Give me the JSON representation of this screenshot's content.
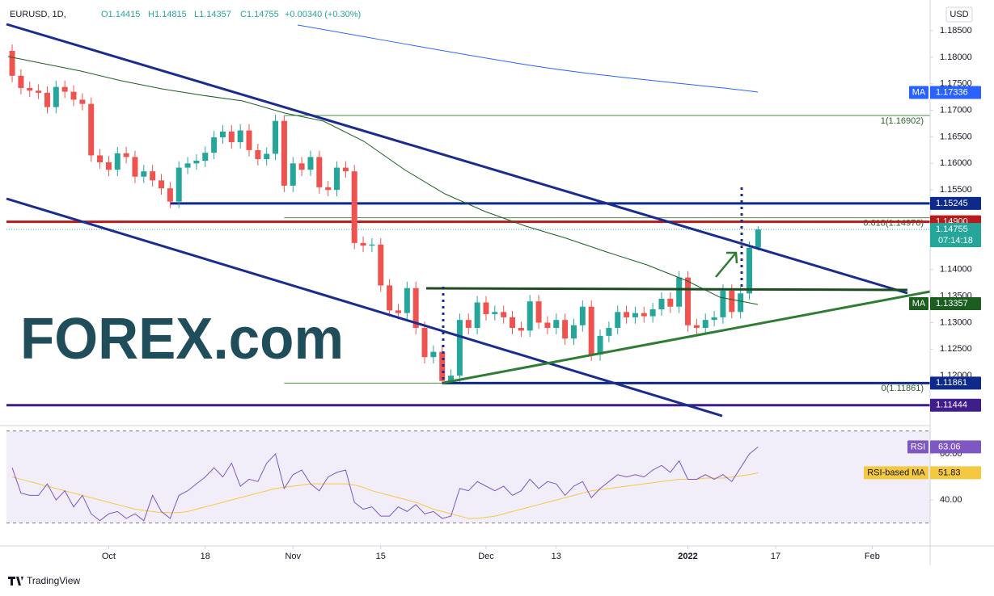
{
  "chart_data": {
    "type": "candlestick",
    "symbol": "EURUSD, 1D,",
    "legend_items": [
      "O1.14415",
      "H1.14815",
      "L1.14357",
      "C1.14755",
      "+0.00340 (+0.30%)"
    ],
    "currency": "USD",
    "logo": "FOREX.com",
    "footer": "TradingView",
    "up_color": "#26a69a",
    "down_color": "#ef5350",
    "x": [
      0,
      1,
      2,
      3,
      4,
      5,
      6,
      7,
      8,
      9,
      10,
      11,
      12,
      13,
      14,
      15,
      16,
      17,
      18,
      19,
      20,
      21,
      22,
      23,
      24,
      25,
      26,
      27,
      28,
      29,
      30,
      31,
      32,
      33,
      34,
      35,
      36,
      37,
      38,
      39,
      40,
      41,
      42,
      43,
      44,
      45,
      46,
      47,
      48,
      49,
      50,
      51,
      52,
      53,
      54,
      55,
      56,
      57,
      58,
      59,
      60,
      61,
      62,
      63,
      64,
      65,
      66,
      67,
      68,
      69,
      70,
      71,
      72,
      73,
      74,
      75,
      76,
      77,
      78,
      79,
      80,
      81,
      82,
      83,
      84,
      85
    ],
    "open": [
      1.1812,
      1.1765,
      1.1742,
      1.1737,
      1.1733,
      1.1706,
      1.1744,
      1.1735,
      1.172,
      1.1712,
      1.1615,
      1.1602,
      1.1588,
      1.1619,
      1.1612,
      1.1575,
      1.1585,
      1.1568,
      1.1553,
      1.1528,
      1.1592,
      1.16,
      1.1605,
      1.162,
      1.1649,
      1.166,
      1.164,
      1.1662,
      1.1625,
      1.1608,
      1.1618,
      1.168,
      1.1558,
      1.16,
      1.1588,
      1.1612,
      1.1555,
      1.155,
      1.1592,
      1.1585,
      1.145,
      1.1445,
      1.1447,
      1.137,
      1.1323,
      1.1318,
      1.1365,
      1.129,
      1.1235,
      1.1245,
      1.119,
      1.12,
      1.1305,
      1.129,
      1.1338,
      1.1316,
      1.132,
      1.131,
      1.129,
      1.1285,
      1.134,
      1.13,
      1.129,
      1.1305,
      1.127,
      1.1295,
      1.133,
      1.124,
      1.1275,
      1.129,
      1.132,
      1.131,
      1.1318,
      1.1312,
      1.1325,
      1.1345,
      1.133,
      1.1385,
      1.1295,
      1.129,
      1.1305,
      1.131,
      1.136,
      1.132,
      1.1355,
      1.14415
    ],
    "high": [
      1.1824,
      1.1777,
      1.1754,
      1.1749,
      1.1745,
      1.1756,
      1.1756,
      1.1747,
      1.1732,
      1.1724,
      1.1627,
      1.1614,
      1.1631,
      1.1631,
      1.1624,
      1.1597,
      1.1597,
      1.158,
      1.1565,
      1.1604,
      1.1612,
      1.1617,
      1.1632,
      1.1661,
      1.1672,
      1.1672,
      1.1674,
      1.1674,
      1.1637,
      1.163,
      1.1692,
      1.16902,
      1.1612,
      1.1612,
      1.1624,
      1.1624,
      1.1567,
      1.1604,
      1.1604,
      1.1597,
      1.1462,
      1.1459,
      1.1459,
      1.1382,
      1.1335,
      1.1377,
      1.1377,
      1.1302,
      1.1257,
      1.1257,
      1.1212,
      1.1317,
      1.1317,
      1.135,
      1.135,
      1.1332,
      1.1332,
      1.1322,
      1.1302,
      1.1352,
      1.1352,
      1.1312,
      1.1317,
      1.1317,
      1.1307,
      1.1342,
      1.1342,
      1.1287,
      1.1302,
      1.1332,
      1.1332,
      1.133,
      1.133,
      1.1337,
      1.1357,
      1.1357,
      1.1397,
      1.1397,
      1.1307,
      1.1317,
      1.1322,
      1.1372,
      1.1372,
      1.1367,
      1.1453,
      1.14815
    ],
    "low": [
      1.1753,
      1.173,
      1.1725,
      1.1721,
      1.1694,
      1.1694,
      1.1723,
      1.1708,
      1.17,
      1.1603,
      1.159,
      1.1576,
      1.1576,
      1.16,
      1.1563,
      1.1563,
      1.1556,
      1.1541,
      1.1516,
      1.1516,
      1.158,
      1.1588,
      1.1593,
      1.1608,
      1.1637,
      1.1628,
      1.1628,
      1.1613,
      1.1596,
      1.1596,
      1.1606,
      1.1546,
      1.1546,
      1.1576,
      1.1576,
      1.1543,
      1.1538,
      1.1538,
      1.1573,
      1.1438,
      1.1433,
      1.1433,
      1.1358,
      1.1311,
      1.1306,
      1.1306,
      1.1278,
      1.1223,
      1.1223,
      1.11861,
      1.1188,
      1.1188,
      1.1278,
      1.1278,
      1.1304,
      1.1304,
      1.1298,
      1.1278,
      1.1273,
      1.1273,
      1.1288,
      1.1278,
      1.1278,
      1.1258,
      1.1258,
      1.1283,
      1.1228,
      1.1228,
      1.1263,
      1.1278,
      1.1298,
      1.1298,
      1.13,
      1.13,
      1.1313,
      1.1318,
      1.1318,
      1.1283,
      1.1278,
      1.1278,
      1.1293,
      1.1298,
      1.1308,
      1.1308,
      1.1343,
      1.14357
    ],
    "close": [
      1.1765,
      1.1742,
      1.1737,
      1.1733,
      1.1706,
      1.1744,
      1.1735,
      1.172,
      1.1712,
      1.1615,
      1.1602,
      1.1588,
      1.1619,
      1.1612,
      1.1575,
      1.1585,
      1.1568,
      1.1553,
      1.1528,
      1.1592,
      1.16,
      1.1605,
      1.162,
      1.1649,
      1.166,
      1.164,
      1.1662,
      1.1625,
      1.1608,
      1.1618,
      1.168,
      1.1558,
      1.16,
      1.1588,
      1.1612,
      1.1555,
      1.155,
      1.1592,
      1.1585,
      1.145,
      1.1445,
      1.1447,
      1.137,
      1.1323,
      1.1318,
      1.1365,
      1.129,
      1.1235,
      1.1245,
      1.119,
      1.12,
      1.1305,
      1.129,
      1.1338,
      1.1316,
      1.132,
      1.131,
      1.129,
      1.1285,
      1.134,
      1.13,
      1.129,
      1.1305,
      1.127,
      1.1295,
      1.133,
      1.124,
      1.1275,
      1.129,
      1.132,
      1.131,
      1.1318,
      1.1312,
      1.1325,
      1.1345,
      1.133,
      1.1385,
      1.1295,
      1.129,
      1.1305,
      1.131,
      1.136,
      1.132,
      1.1355,
      1.1441,
      1.14755
    ],
    "xlim": [
      -0.65,
      104.6
    ],
    "xticks": [
      {
        "value": 11,
        "label": "Oct"
      },
      {
        "value": 22,
        "label": "18"
      },
      {
        "value": 32,
        "label": "Nov"
      },
      {
        "value": 42,
        "label": "15"
      },
      {
        "value": 54,
        "label": "Dec"
      },
      {
        "value": 62,
        "label": "13"
      },
      {
        "value": 77,
        "label": "2022"
      },
      {
        "value": 87,
        "label": "17"
      },
      {
        "value": 98,
        "label": "Feb"
      }
    ],
    "ylim": [
      1.11166,
      1.19002
    ],
    "yticks": [
      {
        "value": 1.185,
        "label": "1.18500"
      },
      {
        "value": 1.18,
        "label": "1.18000"
      },
      {
        "value": 1.175,
        "label": "1.17500"
      },
      {
        "value": 1.17,
        "label": "1.17000"
      },
      {
        "value": 1.165,
        "label": "1.16500"
      },
      {
        "value": 1.16,
        "label": "1.16000"
      },
      {
        "value": 1.155,
        "label": "1.15500"
      },
      {
        "value": 1.14,
        "label": "1.14000"
      },
      {
        "value": 1.135,
        "label": "1.13500"
      },
      {
        "value": 1.13,
        "label": "1.13000"
      },
      {
        "value": 1.125,
        "label": "1.12500"
      },
      {
        "value": 1.12,
        "label": "1.12000"
      }
    ],
    "levels": [
      {
        "value": 1.17336,
        "label": "1.17336",
        "tag": "MA",
        "color": "#2962ff"
      },
      {
        "value": 1.15245,
        "label": "1.15245",
        "color": "#0d2a8a",
        "line": "solid",
        "from": 18
      },
      {
        "value": 1.149,
        "label": "1.14900",
        "color": "#b71c1c",
        "line": "solid"
      },
      {
        "value": 1.14755,
        "label": "1.14755",
        "countdown": "07:14:18",
        "color": "#26a69a",
        "line": "dotted"
      },
      {
        "value": 1.13357,
        "label": "1.13357",
        "tag": "MA",
        "color": "#1b5e20"
      },
      {
        "value": 1.11861,
        "label": "1.11861",
        "color": "#0d2a8a",
        "line": "solid",
        "from": 49
      },
      {
        "value": 1.11444,
        "label": "1.11444",
        "color": "#3f1d8a",
        "line": "solid"
      }
    ],
    "fib": [
      {
        "value": 1.16902,
        "label": "1(1.16902)"
      },
      {
        "value": 1.14976,
        "label": "0.618(1.14976)"
      },
      {
        "value": 1.11861,
        "label": "0(1.11861)"
      }
    ],
    "fib_from": 31,
    "fib_color": "#4c8c4a",
    "rsi": {
      "name": "RSI",
      "color": "#7e57c2",
      "values": [
        54,
        43,
        42,
        42,
        47,
        40,
        44,
        37,
        42,
        34,
        31,
        34,
        35,
        32,
        34,
        31,
        42,
        35,
        32,
        42,
        44,
        47,
        50,
        54,
        50,
        56,
        46,
        49,
        48,
        56,
        60,
        45,
        51,
        53,
        47,
        44,
        50,
        52,
        53,
        39,
        36,
        37,
        33,
        33,
        37,
        35,
        38,
        34,
        35,
        32,
        33,
        45,
        44,
        48,
        46,
        44,
        46,
        42,
        44,
        49,
        45,
        48,
        47,
        42,
        46,
        48,
        41,
        45,
        48,
        51,
        50,
        51,
        50,
        53,
        55,
        52,
        57,
        49,
        49,
        51,
        49,
        51,
        48,
        54,
        60,
        63.06
      ],
      "ma_name": "RSI-based MA",
      "ma_color": "#f5c842",
      "ma_values": [
        50,
        49,
        48,
        47,
        46,
        45,
        44,
        43,
        42,
        41,
        40,
        39,
        38,
        37,
        36,
        35.5,
        35,
        34.5,
        34.5,
        34.5,
        35,
        36,
        37,
        38,
        39,
        40,
        41,
        42,
        43,
        44,
        45,
        45.5,
        46,
        46.5,
        47,
        47,
        47,
        47,
        47,
        46.5,
        45.5,
        44,
        43,
        42,
        41,
        40,
        39,
        37.5,
        36,
        35,
        34,
        33,
        32,
        32,
        32.5,
        33,
        34,
        35,
        36,
        37,
        38,
        39,
        40,
        41,
        42,
        43,
        44,
        44.5,
        45,
        45.5,
        46,
        46.5,
        47,
        47.5,
        48,
        48.5,
        49,
        49,
        49,
        49.5,
        49.5,
        49.5,
        50,
        50.5,
        51,
        51.83
      ],
      "ylim": [
        20.4,
        70.2
      ],
      "yticks": [
        {
          "value": 60,
          "label": "60.00"
        },
        {
          "value": 40,
          "label": "40.00"
        }
      ],
      "band": [
        30,
        70
      ]
    }
  }
}
